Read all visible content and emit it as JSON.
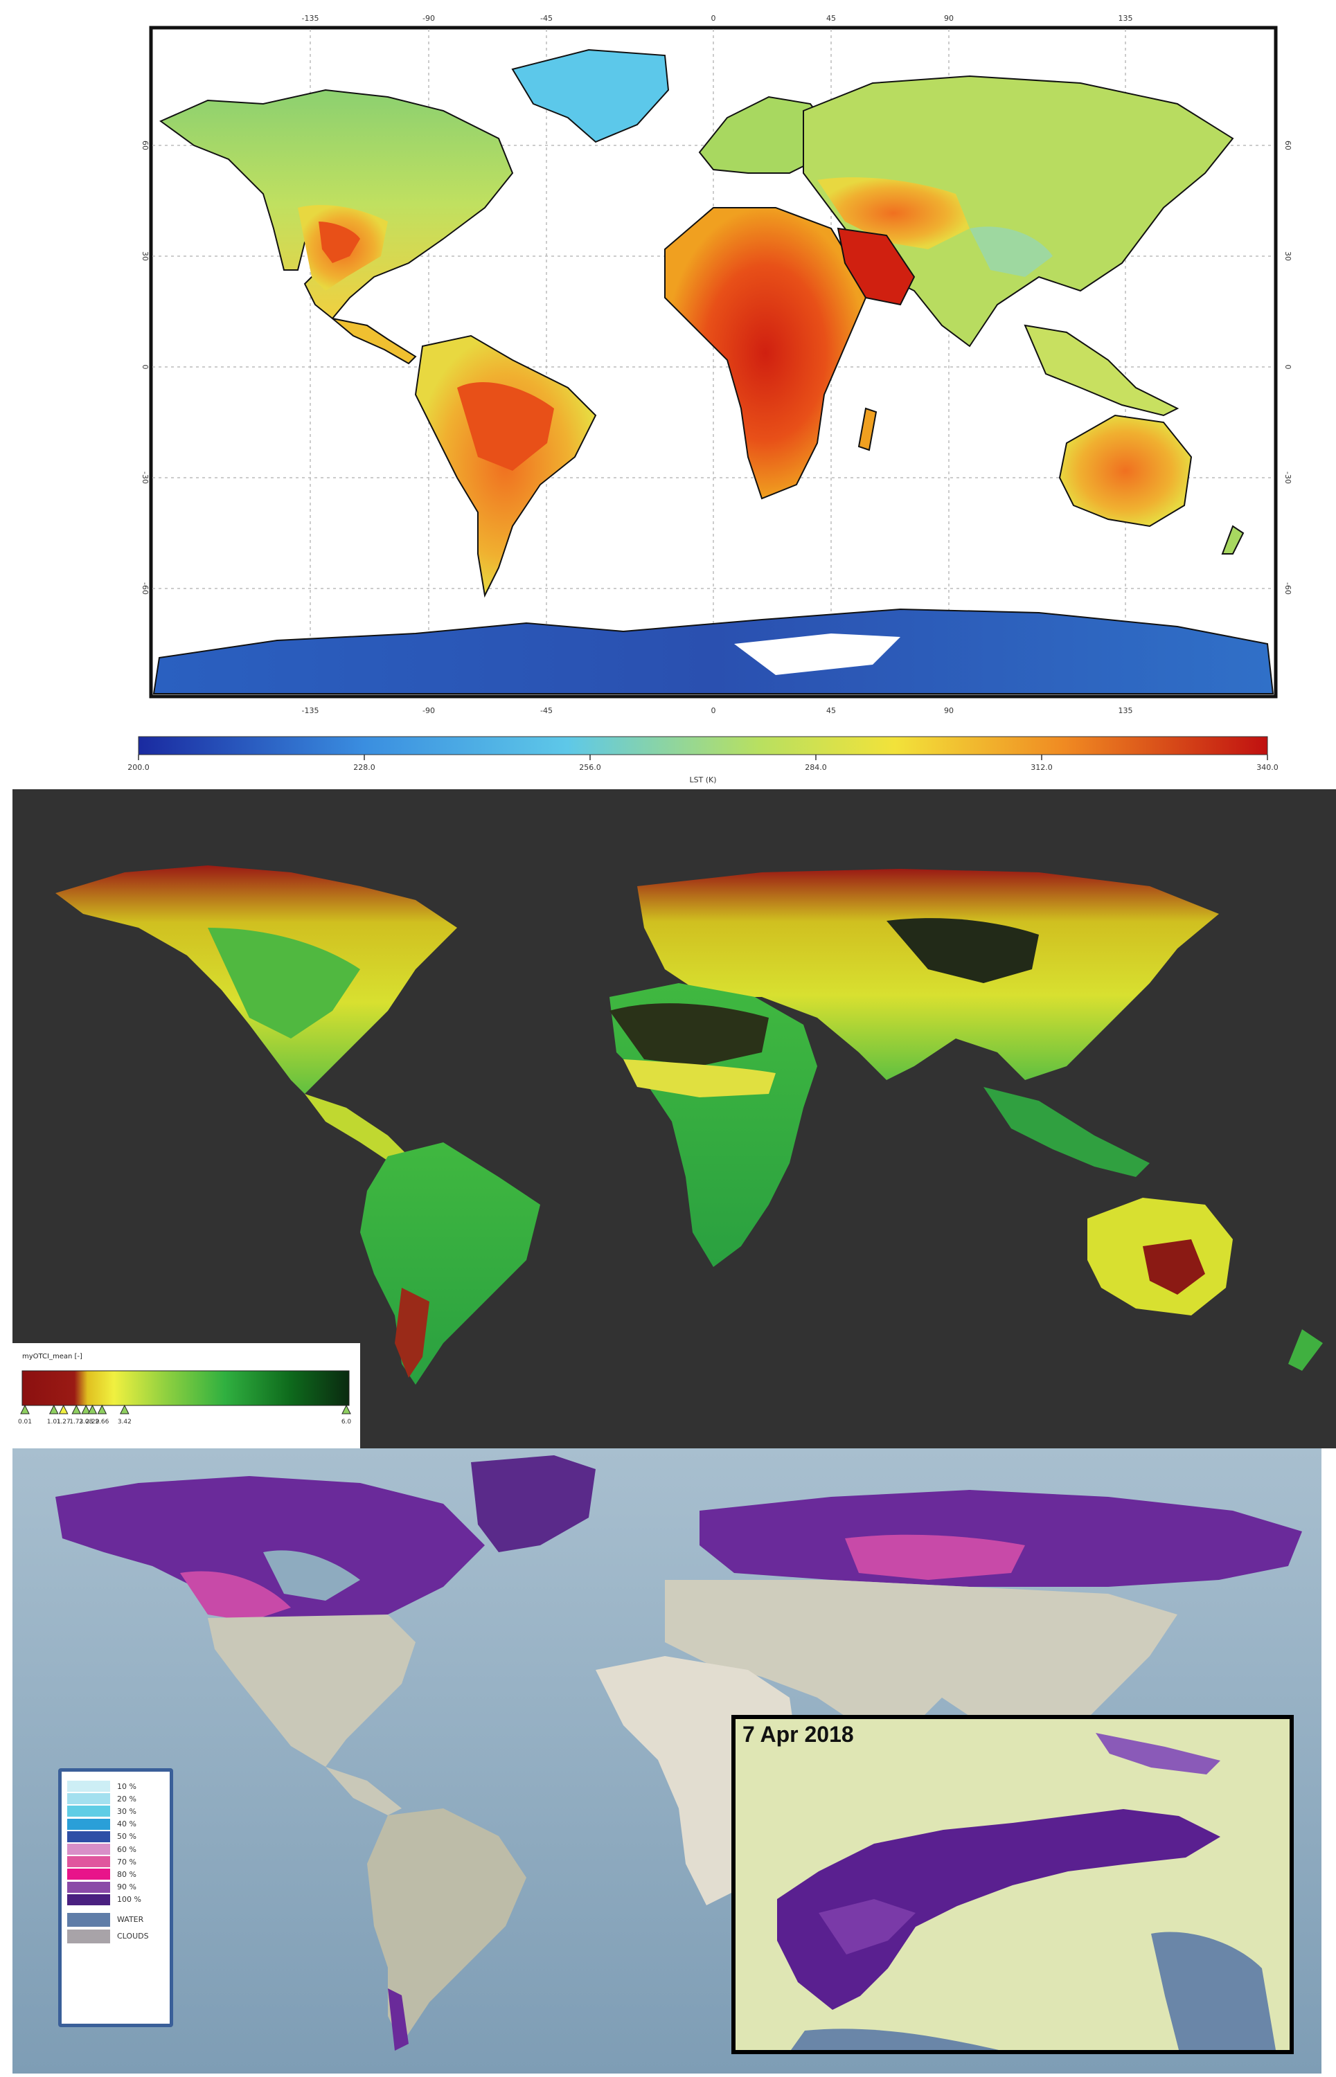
{
  "panel_lst": {
    "lon_ticks": [
      "-135",
      "-90",
      "-45",
      "0",
      "45",
      "90",
      "135"
    ],
    "lat_ticks": [
      "60",
      "30",
      "0",
      "-30",
      "-60"
    ],
    "colorbar_ticks": [
      "200.0",
      "228.0",
      "256.0",
      "284.0",
      "312.0",
      "340.0"
    ],
    "colorbar_label": "LST (K)",
    "colors": [
      "#1a2aa0",
      "#3fa0e0",
      "#5cc8e8",
      "#9fd870",
      "#f0e040",
      "#f09020",
      "#e03018",
      "#c01010"
    ]
  },
  "panel_otci": {
    "legend_title": "myOTCI_mean [-]",
    "legend_ticks": [
      "0.01",
      "1.01",
      "1.27",
      "1.73",
      "2.08",
      "2.29",
      "2.66",
      "3.42",
      "6.0"
    ],
    "background": "#323232",
    "colors": [
      "#8b1010",
      "#d8d820",
      "#f0f030",
      "#8fd040",
      "#30b040",
      "#108020",
      "#0a2a10"
    ]
  },
  "panel_snow": {
    "legend_items": [
      {
        "label": "10 %",
        "color": "#cdeef5"
      },
      {
        "label": "20 %",
        "color": "#a3e0ef"
      },
      {
        "label": "30 %",
        "color": "#5fcde5"
      },
      {
        "label": "40 %",
        "color": "#2a9fd8"
      },
      {
        "label": "50 %",
        "color": "#2e4fa6"
      },
      {
        "label": "60 %",
        "color": "#d88fc8"
      },
      {
        "label": "70 %",
        "color": "#e0569e"
      },
      {
        "label": "80 %",
        "color": "#e8148a"
      },
      {
        "label": "90 %",
        "color": "#8a4aa8"
      },
      {
        "label": "100 %",
        "color": "#4a2080"
      }
    ],
    "extra_items": [
      {
        "label": "WATER",
        "color": "#5f7da8"
      },
      {
        "label": "CLOUDS",
        "color": "#a8a3a8"
      }
    ],
    "inset_date": "7 Apr 2018",
    "ocean_color": "#8eabbf"
  }
}
